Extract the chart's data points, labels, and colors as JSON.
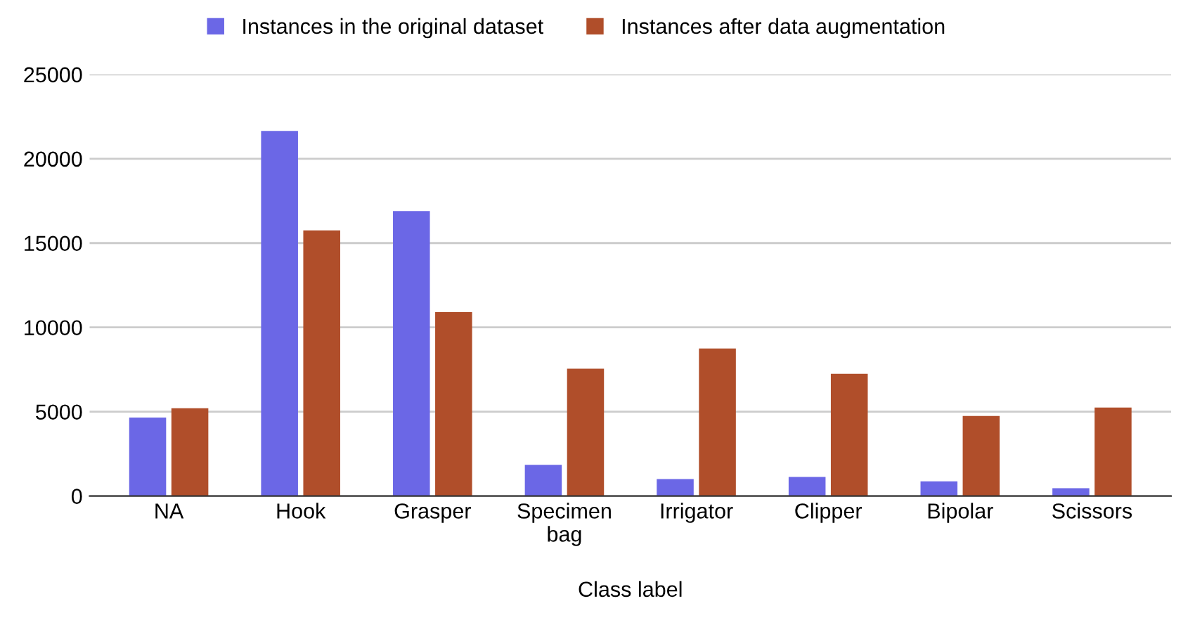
{
  "chart_data": {
    "type": "bar",
    "xlabel": "Class label",
    "categories": [
      "NA",
      "Hook",
      "Grasper",
      "Specimen\nbag",
      "Irrigator",
      "Clipper",
      "Bipolar",
      "Scissors"
    ],
    "series": [
      {
        "name": "Instances in the original dataset",
        "color": "#6b67e6",
        "values": [
          4650,
          21650,
          16900,
          1850,
          1000,
          1130,
          870,
          460
        ]
      },
      {
        "name": "Instances after data augmentation",
        "color": "#b04e2a",
        "values": [
          5200,
          15750,
          10900,
          7550,
          8750,
          7250,
          4750,
          5250
        ]
      }
    ],
    "ylim": [
      0,
      25000
    ],
    "yticks": [
      0,
      5000,
      10000,
      15000,
      20000,
      25000
    ],
    "grid": "y",
    "legend": "top"
  }
}
